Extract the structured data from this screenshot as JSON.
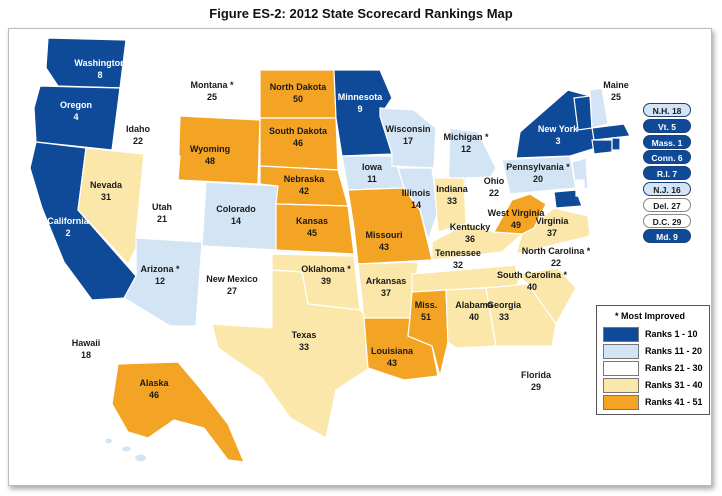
{
  "title": "Figure ES-2:  2012 State Scorecard Rankings Map",
  "colors": {
    "ranks_1_10": "#0e4a97",
    "ranks_11_20": "#d3e5f5",
    "ranks_21_30": "#ffffff",
    "ranks_31_40": "#fbe7a9",
    "ranks_41_51": "#f4a424"
  },
  "states": [
    {
      "name": "Washington",
      "rank": "8",
      "tier": 1,
      "improved": false
    },
    {
      "name": "Oregon",
      "rank": "4",
      "tier": 1,
      "improved": false
    },
    {
      "name": "California",
      "rank": "2",
      "tier": 1,
      "improved": false
    },
    {
      "name": "Idaho",
      "rank": "22",
      "tier": 3,
      "improved": false
    },
    {
      "name": "Nevada",
      "rank": "31",
      "tier": 4,
      "improved": false
    },
    {
      "name": "Montana",
      "rank": "25",
      "tier": 3,
      "improved": true
    },
    {
      "name": "Wyoming",
      "rank": "48",
      "tier": 5,
      "improved": false
    },
    {
      "name": "Utah",
      "rank": "21",
      "tier": 3,
      "improved": false
    },
    {
      "name": "Arizona",
      "rank": "12",
      "tier": 2,
      "improved": true
    },
    {
      "name": "Colorado",
      "rank": "14",
      "tier": 2,
      "improved": false
    },
    {
      "name": "New Mexico",
      "rank": "27",
      "tier": 3,
      "improved": false
    },
    {
      "name": "North Dakota",
      "rank": "50",
      "tier": 5,
      "improved": false
    },
    {
      "name": "South Dakota",
      "rank": "46",
      "tier": 5,
      "improved": false
    },
    {
      "name": "Nebraska",
      "rank": "42",
      "tier": 5,
      "improved": false
    },
    {
      "name": "Kansas",
      "rank": "45",
      "tier": 5,
      "improved": false
    },
    {
      "name": "Oklahoma",
      "rank": "39",
      "tier": 4,
      "improved": true
    },
    {
      "name": "Texas",
      "rank": "33",
      "tier": 4,
      "improved": false
    },
    {
      "name": "Minnesota",
      "rank": "9",
      "tier": 1,
      "improved": false
    },
    {
      "name": "Iowa",
      "rank": "11",
      "tier": 2,
      "improved": false
    },
    {
      "name": "Missouri",
      "rank": "43",
      "tier": 5,
      "improved": false
    },
    {
      "name": "Arkansas",
      "rank": "37",
      "tier": 4,
      "improved": false
    },
    {
      "name": "Louisiana",
      "rank": "43",
      "tier": 5,
      "improved": false
    },
    {
      "name": "Wisconsin",
      "rank": "17",
      "tier": 2,
      "improved": false
    },
    {
      "name": "Illinois",
      "rank": "14",
      "tier": 2,
      "improved": false
    },
    {
      "name": "Michigan",
      "rank": "12",
      "tier": 2,
      "improved": true
    },
    {
      "name": "Indiana",
      "rank": "33",
      "tier": 4,
      "improved": false
    },
    {
      "name": "Ohio",
      "rank": "22",
      "tier": 3,
      "improved": false
    },
    {
      "name": "Kentucky",
      "rank": "36",
      "tier": 4,
      "improved": false
    },
    {
      "name": "Tennessee",
      "rank": "32",
      "tier": 4,
      "improved": false
    },
    {
      "name": "Miss.",
      "rank": "51",
      "tier": 5,
      "improved": false
    },
    {
      "name": "Alabama",
      "rank": "40",
      "tier": 4,
      "improved": false
    },
    {
      "name": "Georgia",
      "rank": "33",
      "tier": 4,
      "improved": false
    },
    {
      "name": "Florida",
      "rank": "29",
      "tier": 3,
      "improved": false
    },
    {
      "name": "South Carolina",
      "rank": "40",
      "tier": 4,
      "improved": true
    },
    {
      "name": "North Carolina",
      "rank": "22",
      "tier": 3,
      "improved": true
    },
    {
      "name": "Virginia",
      "rank": "37",
      "tier": 4,
      "improved": false
    },
    {
      "name": "West Virginia",
      "rank": "49",
      "tier": 5,
      "improved": false
    },
    {
      "name": "Pennsylvania",
      "rank": "20",
      "tier": 2,
      "improved": true
    },
    {
      "name": "New York",
      "rank": "3",
      "tier": 1,
      "improved": false
    },
    {
      "name": "Maine",
      "rank": "25",
      "tier": 3,
      "improved": false
    },
    {
      "name": "Hawaii",
      "rank": "18",
      "tier": 2,
      "improved": false
    },
    {
      "name": "Alaska",
      "rank": "46",
      "tier": 5,
      "improved": false
    }
  ],
  "small_states": [
    {
      "label": "N.H. 18",
      "tier": 2
    },
    {
      "label": "Vt. 5",
      "tier": 1
    },
    {
      "label": "Mass. 1",
      "tier": 1
    },
    {
      "label": "Conn. 6",
      "tier": 1
    },
    {
      "label": "R.I. 7",
      "tier": 1
    },
    {
      "label": "N.J. 16",
      "tier": 2
    },
    {
      "label": "Del. 27",
      "tier": 3
    },
    {
      "label": "D.C. 29",
      "tier": 3
    },
    {
      "label": "Md. 9",
      "tier": 1
    }
  ],
  "legend": {
    "marker": "*",
    "header": "Most Improved",
    "entries": [
      {
        "label": "Ranks 1 - 10",
        "tier": 1
      },
      {
        "label": "Ranks 11 - 20",
        "tier": 2
      },
      {
        "label": "Ranks 21 - 30",
        "tier": 3
      },
      {
        "label": "Ranks 31 - 40",
        "tier": 4
      },
      {
        "label": "Ranks 41 - 51",
        "tier": 5
      }
    ]
  }
}
